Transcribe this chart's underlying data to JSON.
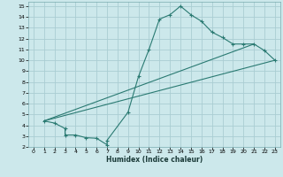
{
  "xlabel": "Humidex (Indice chaleur)",
  "bg_color": "#cce8eb",
  "grid_color": "#aacdd2",
  "line_color": "#2a7a72",
  "xlim": [
    -0.5,
    23.5
  ],
  "ylim": [
    2,
    15.4
  ],
  "xticks": [
    0,
    1,
    2,
    3,
    4,
    5,
    6,
    7,
    8,
    9,
    10,
    11,
    12,
    13,
    14,
    15,
    16,
    17,
    18,
    19,
    20,
    21,
    22,
    23
  ],
  "yticks": [
    2,
    3,
    4,
    5,
    6,
    7,
    8,
    9,
    10,
    11,
    12,
    13,
    14,
    15
  ],
  "curve1_x": [
    1,
    2,
    3,
    3,
    4,
    5,
    6,
    7,
    7,
    9,
    10,
    11,
    12,
    13,
    14,
    15,
    16,
    17,
    18,
    19,
    20,
    21,
    22,
    23
  ],
  "curve1_y": [
    4.4,
    4.2,
    3.7,
    3.1,
    3.1,
    2.85,
    2.8,
    2.2,
    2.6,
    5.2,
    8.5,
    11.0,
    13.8,
    14.2,
    15.0,
    14.2,
    13.6,
    12.6,
    12.1,
    11.5,
    11.5,
    11.5,
    10.9,
    10.0
  ],
  "line1_x": [
    1,
    21
  ],
  "line1_y": [
    4.4,
    11.5
  ],
  "line2_x": [
    1,
    23
  ],
  "line2_y": [
    4.4,
    10.0
  ]
}
